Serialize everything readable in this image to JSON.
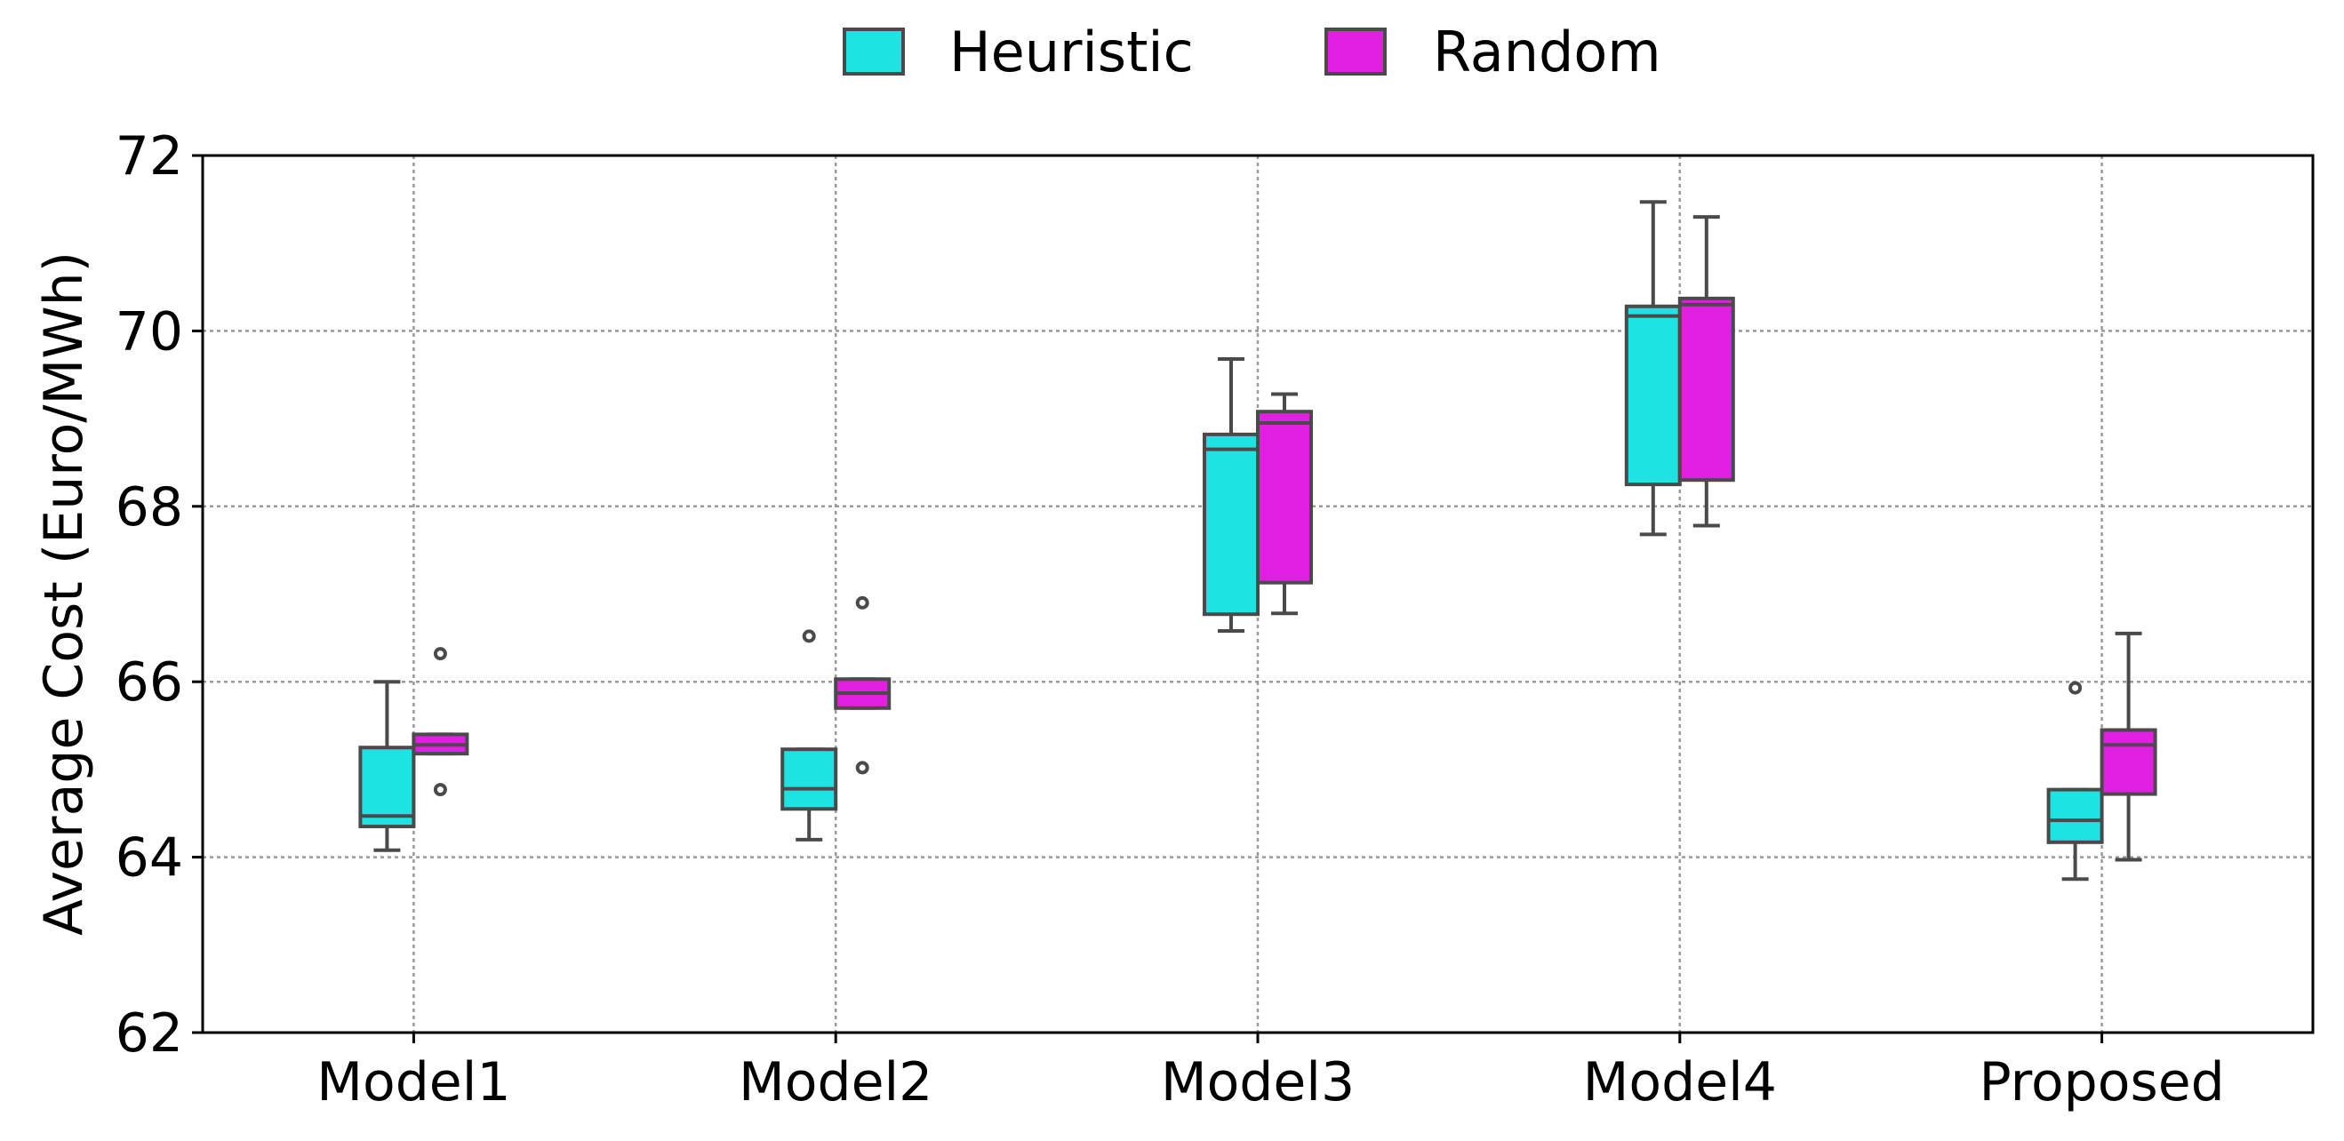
{
  "chart_data": {
    "type": "boxplot",
    "title": "",
    "xlabel": "",
    "ylabel": "Average Cost (Euro/MWh)",
    "ylim": [
      62,
      72
    ],
    "yticks": [
      62,
      64,
      66,
      68,
      70,
      72
    ],
    "grid": true,
    "legend_position": "top-center",
    "categories": [
      "Model1",
      "Model2",
      "Model3",
      "Model4",
      "Proposed"
    ],
    "series": [
      {
        "name": "Heuristic",
        "color": "#1de3e3",
        "boxes": [
          {
            "whislo": 64.08,
            "q1": 64.35,
            "med": 64.47,
            "q3": 65.25,
            "whishi": 66.0,
            "fliers": []
          },
          {
            "whislo": 64.2,
            "q1": 64.55,
            "med": 64.78,
            "q3": 65.23,
            "whishi": 65.23,
            "fliers": [
              66.52
            ]
          },
          {
            "whislo": 66.58,
            "q1": 66.77,
            "med": 68.65,
            "q3": 68.82,
            "whishi": 69.68,
            "fliers": []
          },
          {
            "whislo": 67.68,
            "q1": 68.25,
            "med": 70.17,
            "q3": 70.28,
            "whishi": 71.47,
            "fliers": []
          },
          {
            "whislo": 63.75,
            "q1": 64.17,
            "med": 64.42,
            "q3": 64.77,
            "whishi": 64.77,
            "fliers": [
              65.93
            ]
          }
        ]
      },
      {
        "name": "Random",
        "color": "#e11fe1",
        "boxes": [
          {
            "whislo": 65.18,
            "q1": 65.18,
            "med": 65.28,
            "q3": 65.4,
            "whishi": 65.4,
            "fliers": [
              64.77,
              66.32
            ]
          },
          {
            "whislo": 65.7,
            "q1": 65.7,
            "med": 65.87,
            "q3": 66.03,
            "whishi": 66.03,
            "fliers": [
              65.02,
              66.9
            ]
          },
          {
            "whislo": 66.78,
            "q1": 67.13,
            "med": 68.95,
            "q3": 69.08,
            "whishi": 69.28,
            "fliers": []
          },
          {
            "whislo": 67.78,
            "q1": 68.3,
            "med": 70.3,
            "q3": 70.37,
            "whishi": 71.3,
            "fliers": []
          },
          {
            "whislo": 63.97,
            "q1": 64.72,
            "med": 65.28,
            "q3": 65.45,
            "whishi": 66.55,
            "fliers": []
          }
        ]
      }
    ]
  }
}
